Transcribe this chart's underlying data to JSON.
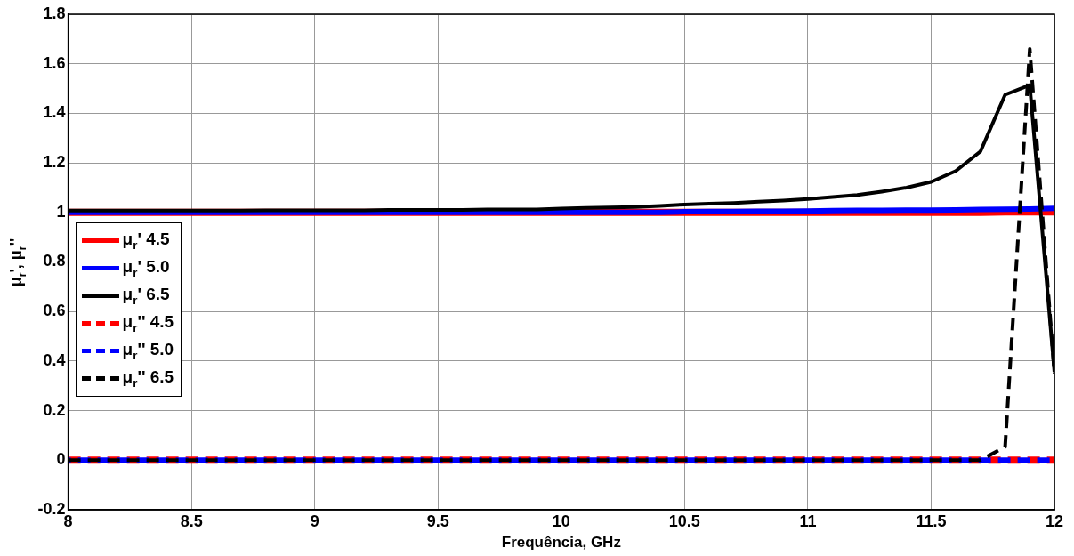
{
  "chart_data": {
    "type": "line",
    "xlabel": "Frequência, GHz",
    "ylabel": "μ$_{r}$', μ$_{r}$''",
    "x": [
      8,
      8.1,
      8.2,
      8.3,
      8.4,
      8.5,
      8.6,
      8.7,
      8.8,
      8.9,
      9,
      9.1,
      9.2,
      9.3,
      9.4,
      9.5,
      9.6,
      9.7,
      9.8,
      9.9,
      10,
      10.1,
      10.2,
      10.3,
      10.4,
      10.5,
      10.6,
      10.7,
      10.8,
      10.9,
      11,
      11.1,
      11.2,
      11.3,
      11.4,
      11.5,
      11.6,
      11.7,
      11.8,
      11.9,
      12
    ],
    "series": [
      {
        "name": "μ$_{r}$' 4.5",
        "color": "#ff0000",
        "line_style": "solid",
        "values": [
          1,
          1,
          1,
          1,
          1,
          1,
          1,
          1,
          1,
          1,
          1,
          1,
          1,
          1,
          1,
          1,
          1,
          1,
          1,
          1,
          1,
          1,
          1,
          1,
          1,
          1,
          1,
          1,
          1,
          1,
          1,
          1,
          1,
          1,
          1,
          1,
          1,
          1,
          1.002,
          1.002,
          1.002
        ]
      },
      {
        "name": "μ$_{r}$' 5.0",
        "color": "#0000ff",
        "line_style": "solid",
        "values": [
          1,
          1,
          1,
          1,
          1,
          1,
          1,
          1,
          1,
          1,
          1,
          1,
          1,
          1,
          1,
          1,
          1,
          1,
          1,
          1,
          1,
          1,
          1,
          1,
          1,
          1.003,
          1.004,
          1.004,
          1.005,
          1.005,
          1.006,
          1.007,
          1.008,
          1.008,
          1.009,
          1.009,
          1.01,
          1.012,
          1.013,
          1.014,
          1.016
        ]
      },
      {
        "name": "μ$_{r}$' 6.5",
        "color": "#000000",
        "line_style": "solid",
        "values": [
          1.007,
          1.007,
          1.007,
          1.007,
          1.007,
          1.007,
          1.007,
          1.007,
          1.008,
          1.008,
          1.008,
          1.008,
          1.008,
          1.01,
          1.01,
          1.01,
          1.01,
          1.012,
          1.012,
          1.012,
          1.015,
          1.018,
          1.02,
          1.022,
          1.026,
          1.032,
          1.035,
          1.038,
          1.043,
          1.048,
          1.054,
          1.062,
          1.07,
          1.084,
          1.1,
          1.123,
          1.167,
          1.246,
          1.475,
          1.514,
          0.355
        ]
      },
      {
        "name": "μ$_{r}$'' 4.5",
        "color": "#ff0000",
        "line_style": "dashed",
        "values": [
          0,
          0,
          0,
          0,
          0,
          0,
          0,
          0,
          0,
          0,
          0,
          0,
          0,
          0,
          0,
          0,
          0,
          0,
          0,
          0,
          0,
          0,
          0,
          0,
          0,
          0,
          0,
          0,
          0,
          0,
          0,
          0,
          0,
          0,
          0,
          0,
          0,
          0,
          0,
          0,
          0
        ]
      },
      {
        "name": "μ$_{r}$'' 5.0",
        "color": "#0000ff",
        "line_style": "dashed",
        "values": [
          0,
          0,
          0,
          0,
          0,
          0,
          0,
          0,
          0,
          0,
          0,
          0,
          0,
          0,
          0,
          0,
          0,
          0,
          0,
          0,
          0,
          0,
          0,
          0,
          0,
          0,
          0,
          0,
          0,
          0,
          0,
          0,
          0,
          0,
          0,
          0,
          0,
          0,
          0,
          0,
          0
        ]
      },
      {
        "name": "μ$_{r}$'' 6.5",
        "color": "#000000",
        "line_style": "dashed",
        "values": [
          0,
          0,
          0,
          0,
          0,
          0,
          0,
          0,
          0,
          0,
          0,
          0,
          0,
          0,
          0,
          0,
          0,
          0,
          0,
          0,
          0,
          0,
          0,
          0,
          0,
          0,
          0,
          0,
          0,
          0,
          0,
          0,
          0,
          0,
          0,
          0,
          0,
          0,
          0.054,
          1.66,
          0.35
        ]
      }
    ],
    "xlim": [
      8,
      12
    ],
    "xticks": [
      8,
      8.5,
      9,
      9.5,
      10,
      10.5,
      11,
      11.5,
      12
    ],
    "ylim": [
      -0.2,
      1.8
    ],
    "yticks": [
      -0.2,
      0,
      0.2,
      0.4,
      0.6,
      0.8,
      1,
      1.2,
      1.4,
      1.6,
      1.8
    ],
    "grid": true,
    "legend": "left",
    "marker": "none"
  }
}
